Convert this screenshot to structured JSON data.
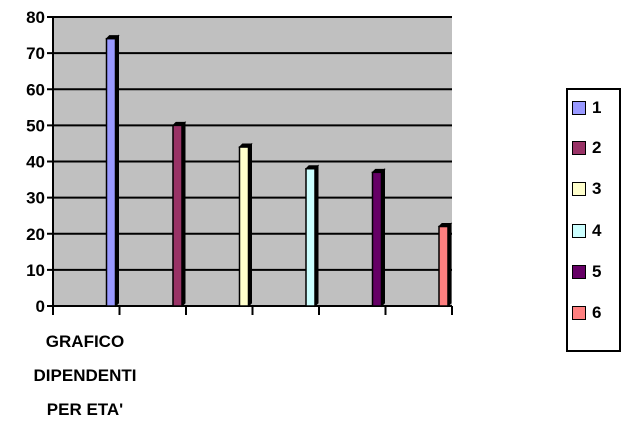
{
  "chart_data": {
    "type": "bar",
    "categories": [
      "GRAFICO DIPENDENTI PER ETA'"
    ],
    "caption_lines": [
      "GRAFICO",
      "DIPENDENTI",
      "PER ETA'"
    ],
    "series": [
      {
        "name": "1",
        "values": [
          74
        ],
        "color": "#9999ff"
      },
      {
        "name": "2",
        "values": [
          50
        ],
        "color": "#993366"
      },
      {
        "name": "3",
        "values": [
          44
        ],
        "color": "#ffffcc"
      },
      {
        "name": "4",
        "values": [
          38
        ],
        "color": "#ccffff"
      },
      {
        "name": "5",
        "values": [
          37
        ],
        "color": "#660066"
      },
      {
        "name": "6",
        "values": [
          22
        ],
        "color": "#ff8080"
      }
    ],
    "ylim": [
      0,
      80
    ],
    "yticks": [
      "0",
      "10",
      "20",
      "30",
      "40",
      "50",
      "60",
      "70",
      "80"
    ],
    "grid": true,
    "plot_background": "#c0c0c0",
    "legend_position": "right"
  }
}
